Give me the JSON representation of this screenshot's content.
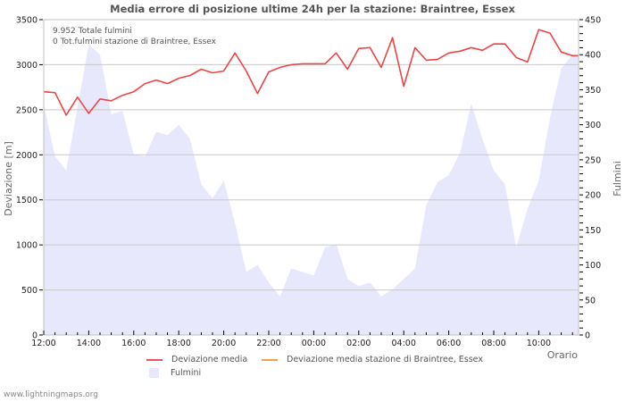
{
  "title": "Media errore di posizione ultime 24h per la stazione: Braintree, Essex",
  "info": {
    "total_line": "9.952 Totale fulmini",
    "station_line": "0 Tot.fulmini stazione di Braintree, Essex"
  },
  "axes": {
    "y_left_label": "Deviazione  [m]",
    "y_right_label": "Fulmini",
    "x_label": "Orario"
  },
  "legend": {
    "series1": "Deviazione media",
    "series2": "Deviazione media stazione di Braintree, Essex",
    "series3": "Fulmini"
  },
  "footer": "www.lightningmaps.org",
  "colors": {
    "deviation": "#ee4444",
    "station_deviation": "#f0a050",
    "lightning_fill": "#e8e8fc",
    "grid": "#c8c8c8",
    "frame": "#c0c0c0"
  },
  "chart_data": {
    "type": "line",
    "title": "Media errore di posizione ultime 24h per la stazione: Braintree, Essex",
    "xlabel": "Orario",
    "ylabel": "Deviazione  [m]",
    "y2label": "Fulmini",
    "ylim": [
      0,
      3500
    ],
    "y2lim": [
      0,
      450
    ],
    "yticks": [
      0,
      500,
      1000,
      1500,
      2000,
      2500,
      3000,
      3500
    ],
    "y2ticks": [
      0,
      50,
      100,
      150,
      200,
      250,
      300,
      350,
      400,
      450
    ],
    "xtick_labels": [
      "12:00",
      "14:00",
      "16:00",
      "18:00",
      "20:00",
      "22:00",
      "00:00",
      "02:00",
      "04:00",
      "06:00",
      "08:00",
      "10:00"
    ],
    "grid": true,
    "legend_position": "bottom",
    "x": [
      "12:00",
      "12:30",
      "13:00",
      "13:30",
      "14:00",
      "14:30",
      "15:00",
      "15:30",
      "16:00",
      "16:30",
      "17:00",
      "17:30",
      "18:00",
      "18:30",
      "19:00",
      "19:30",
      "20:00",
      "20:30",
      "21:00",
      "21:30",
      "22:00",
      "22:30",
      "23:00",
      "23:30",
      "00:00",
      "00:30",
      "01:00",
      "01:30",
      "02:00",
      "02:30",
      "03:00",
      "03:30",
      "04:00",
      "04:30",
      "05:00",
      "05:30",
      "06:00",
      "06:30",
      "07:00",
      "07:30",
      "08:00",
      "08:30",
      "09:00",
      "09:30",
      "10:00",
      "10:30",
      "11:00",
      "11:30"
    ],
    "series": [
      {
        "name": "Deviazione media",
        "axis": "left",
        "type": "line",
        "values": [
          2700,
          2690,
          2440,
          2640,
          2460,
          2620,
          2600,
          2660,
          2700,
          2790,
          2830,
          2790,
          2850,
          2880,
          2950,
          2910,
          2930,
          3130,
          2930,
          2680,
          2920,
          2970,
          3000,
          3010,
          3010,
          3010,
          3130,
          2950,
          3180,
          3190,
          2970,
          3300,
          2760,
          3190,
          3050,
          3060,
          3130,
          3150,
          3190,
          3160,
          3230,
          3230,
          3080,
          3030,
          3390,
          3350,
          3140,
          3100
        ]
      },
      {
        "name": "Deviazione media stazione di Braintree, Essex",
        "axis": "left",
        "type": "line",
        "values": []
      },
      {
        "name": "Fulmini",
        "axis": "right",
        "type": "area",
        "values": [
          330,
          255,
          235,
          325,
          415,
          400,
          315,
          320,
          258,
          255,
          290,
          285,
          300,
          280,
          215,
          195,
          220,
          160,
          90,
          100,
          75,
          55,
          95,
          90,
          85,
          125,
          130,
          80,
          70,
          75,
          55,
          65,
          80,
          95,
          185,
          218,
          228,
          260,
          330,
          280,
          235,
          215,
          125,
          180,
          220,
          310,
          380,
          400
        ]
      }
    ],
    "annotations": [
      "9.952 Totale fulmini",
      "0 Tot.fulmini stazione di Braintree, Essex"
    ]
  }
}
